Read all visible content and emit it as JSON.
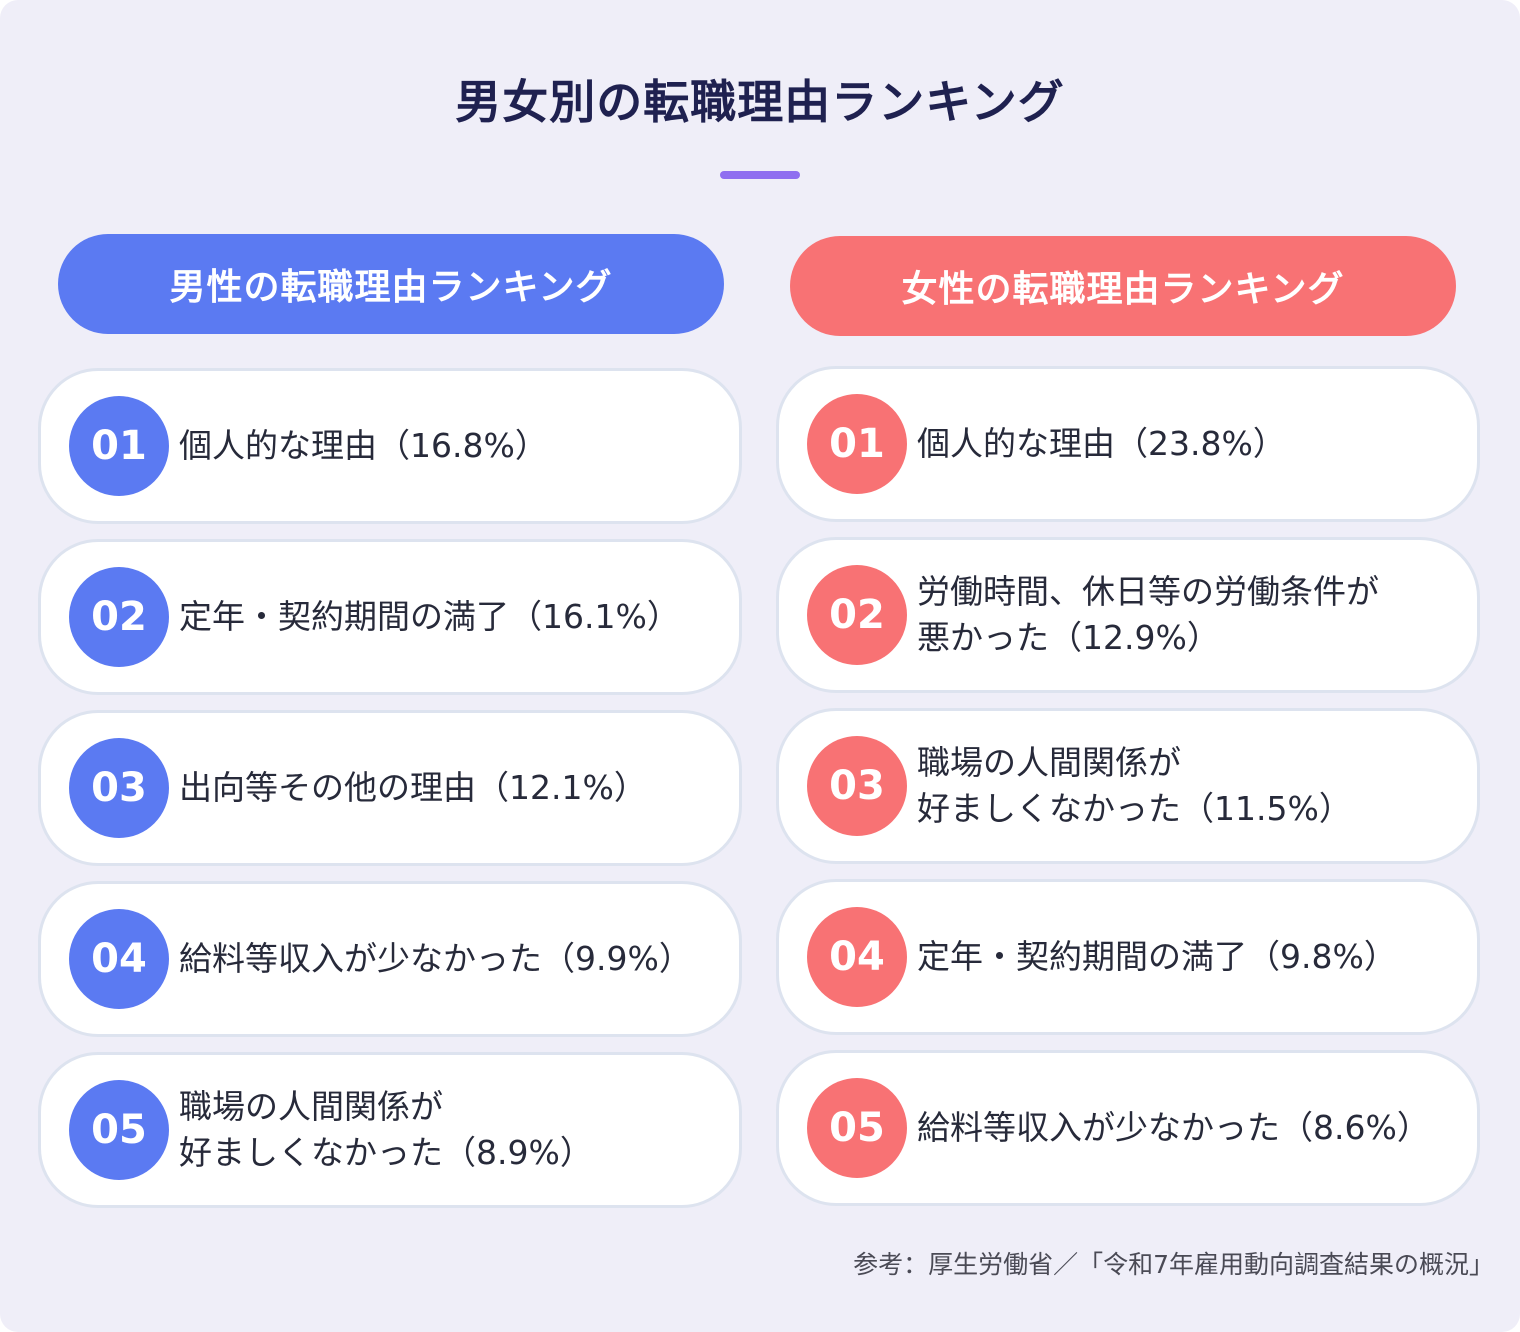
{
  "title": "男女別の転職理由ランキング",
  "male": {
    "header": "男性の転職理由ランキング",
    "items": [
      {
        "rank": "01",
        "text": "個人的な理由（16.8%）"
      },
      {
        "rank": "02",
        "text": "定年・契約期間の満了（16.1%）"
      },
      {
        "rank": "03",
        "text": "出向等その他の理由（12.1%）"
      },
      {
        "rank": "04",
        "text": "給料等収入が少なかった（9.9%）"
      },
      {
        "rank": "05",
        "text": "職場の人間関係が\n好ましくなかった（8.9%）"
      }
    ]
  },
  "female": {
    "header": "女性の転職理由ランキング",
    "items": [
      {
        "rank": "01",
        "text": "個人的な理由（23.8%）"
      },
      {
        "rank": "02",
        "text": "労働時間、休日等の労働条件が\n悪かった（12.9%）"
      },
      {
        "rank": "03",
        "text": "職場の人間関係が\n好ましくなかった（11.5%）"
      },
      {
        "rank": "04",
        "text": "定年・契約期間の満了（9.8%）"
      },
      {
        "rank": "05",
        "text": "給料等収入が少なかった（8.6%）"
      }
    ]
  },
  "source": "参考：厚生労働省／「令和7年雇用動向調査結果の概況」",
  "colors": {
    "male": "#5b7af2",
    "female": "#f87274",
    "title": "#1f2150",
    "accent": "#8f6ef0",
    "background": "#efeef8"
  }
}
